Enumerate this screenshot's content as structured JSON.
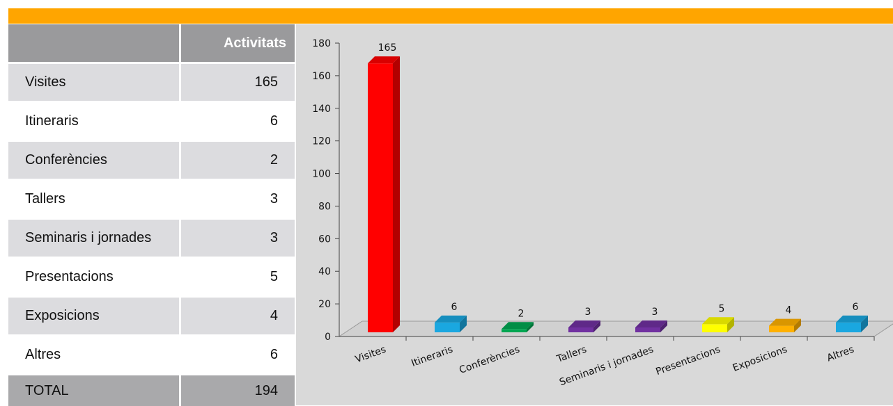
{
  "table": {
    "header": {
      "column": "Activitats"
    },
    "rows": [
      [
        "Visites",
        165
      ],
      [
        "Itineraris",
        6
      ],
      [
        "Conferències",
        2
      ],
      [
        "Tallers",
        3
      ],
      [
        "Seminaris i jornades",
        3
      ],
      [
        "Presentacions",
        5
      ],
      [
        "Exposicions",
        4
      ],
      [
        "Altres",
        6
      ]
    ],
    "total": [
      "TOTAL",
      194
    ]
  },
  "chart_data": {
    "type": "bar3d",
    "categories": [
      "Visites",
      "Itineraris",
      "Conferències",
      "Tallers",
      "Seminaris i jornades",
      "Presentacions",
      "Exposicions",
      "Altres"
    ],
    "values": [
      165,
      6,
      2,
      3,
      3,
      5,
      4,
      6
    ],
    "colors": [
      "#ff0000",
      "#1aa7e0",
      "#00a651",
      "#7030a0",
      "#7030a0",
      "#ffff00",
      "#ffb000",
      "#1aa7e0"
    ],
    "ylim": [
      0,
      180
    ],
    "yticks": [
      0,
      20,
      40,
      60,
      80,
      100,
      120,
      140,
      160,
      180
    ]
  }
}
